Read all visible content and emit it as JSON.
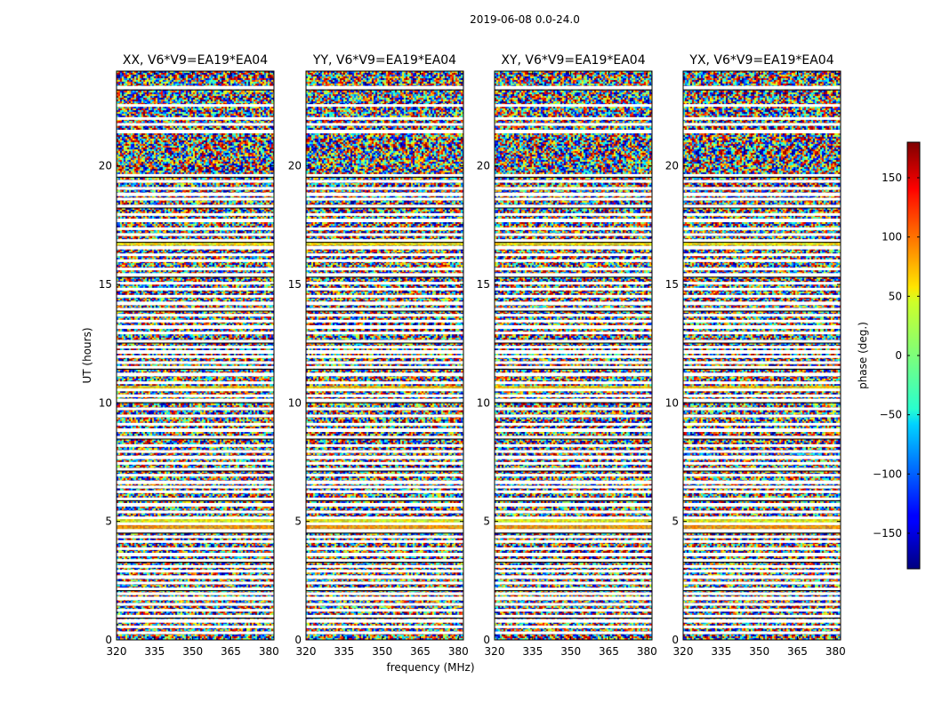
{
  "chart_data": {
    "type": "heatmap",
    "suptitle": "2019-06-08 0.0-24.0",
    "panels": [
      {
        "title": "XX, V6*V9=EA19*EA04"
      },
      {
        "title": "YY, V6*V9=EA19*EA04"
      },
      {
        "title": "XY, V6*V9=EA19*EA04"
      },
      {
        "title": "YX, V6*V9=EA19*EA04"
      }
    ],
    "xlabel": "frequency (MHz)",
    "ylabel": "UT (hours)",
    "xlim": [
      320,
      382
    ],
    "ylim": [
      0,
      24
    ],
    "xticks": [
      320,
      335,
      350,
      365,
      380
    ],
    "yticks": [
      0,
      5,
      10,
      15,
      20
    ],
    "colorbar": {
      "label": "phase (deg.)",
      "range": [
        -180,
        180
      ],
      "ticks": [
        150,
        100,
        50,
        0,
        -50,
        -100,
        -150
      ],
      "tick_labels": [
        "150",
        "100",
        "50",
        "0",
        "−50",
        "−100",
        "−150"
      ],
      "colormap": "jet"
    },
    "flagged_rows_ut": [
      23.3,
      22.55,
      22.0,
      21.75,
      21.45,
      19.6,
      19.35,
      19.05,
      18.8,
      18.6,
      18.3,
      17.95,
      17.7,
      17.35,
      17.1,
      16.85,
      16.55,
      16.25,
      16.0,
      15.65,
      15.4,
      15.05,
      14.8,
      14.5,
      14.2,
      13.95,
      13.7,
      13.45,
      13.2,
      12.95,
      12.6,
      12.35,
      12.15,
      11.95,
      11.7,
      11.5,
      11.2,
      10.85,
      10.55,
      10.3,
      10.1,
      9.75,
      9.45,
      9.1,
      8.85,
      8.55,
      8.2,
      7.95,
      7.7,
      7.45,
      7.2,
      6.95,
      6.65,
      6.45,
      6.25,
      5.95,
      5.7,
      5.4,
      5.15,
      4.9,
      4.6,
      4.35,
      4.15,
      3.85,
      3.6,
      3.35,
      3.1,
      2.9,
      2.65,
      2.4,
      2.15,
      1.95,
      1.75,
      1.5,
      1.25,
      1.0,
      0.8,
      0.55,
      0.3
    ],
    "bright_rows_ut": [
      {
        "ut": 16.75,
        "phase": 50
      },
      {
        "ut": 10.6,
        "phase": 60
      },
      {
        "ut": 5.05,
        "phase": 40
      },
      {
        "ut": 4.75,
        "phase": 80
      }
    ]
  }
}
